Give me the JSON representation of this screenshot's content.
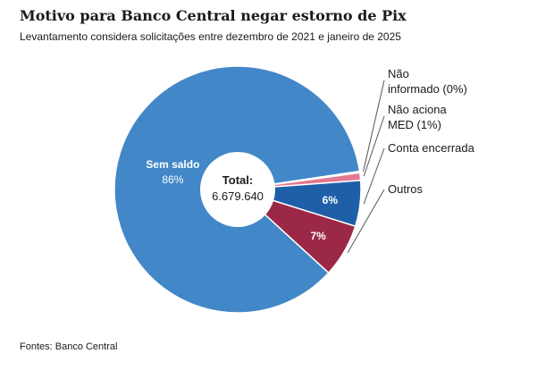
{
  "header": {
    "title": "Motivo para Banco Central negar estorno de Pix",
    "subtitle": "Levantamento considera solicitações entre dezembro de 2021 e janeiro de 2025"
  },
  "footer": {
    "source": "Fontes: Banco Central"
  },
  "chart_data": {
    "type": "pie",
    "center_label": "Total:",
    "center_value": "6.679.640",
    "slices": [
      {
        "name": "Sem saldo",
        "value": 86,
        "display": "86%",
        "color": "#4287c8",
        "label_inside": true
      },
      {
        "name": "Não informado",
        "value": 0.2,
        "display": "(0%)",
        "color": "#b7c9d8",
        "label_inside": false
      },
      {
        "name": "Não aciona MED",
        "value": 1,
        "display": "(1%)",
        "color": "#e57890",
        "label_inside": false
      },
      {
        "name": "Conta encerrada",
        "value": 6,
        "display": "6%",
        "color": "#1e5fa8",
        "label_inside": true
      },
      {
        "name": "Outros",
        "value": 7,
        "display": "7%",
        "color": "#9b2846",
        "label_inside": true
      }
    ],
    "external_labels": [
      {
        "slice": "Não informado",
        "lines": [
          "Não",
          "informado (0%)"
        ]
      },
      {
        "slice": "Não aciona MED",
        "lines": [
          "Não aciona",
          "MED (1%)"
        ]
      },
      {
        "slice": "Conta encerrada",
        "lines": [
          "Conta encerrada"
        ]
      },
      {
        "slice": "Outros",
        "lines": [
          "Outros"
        ]
      }
    ]
  }
}
